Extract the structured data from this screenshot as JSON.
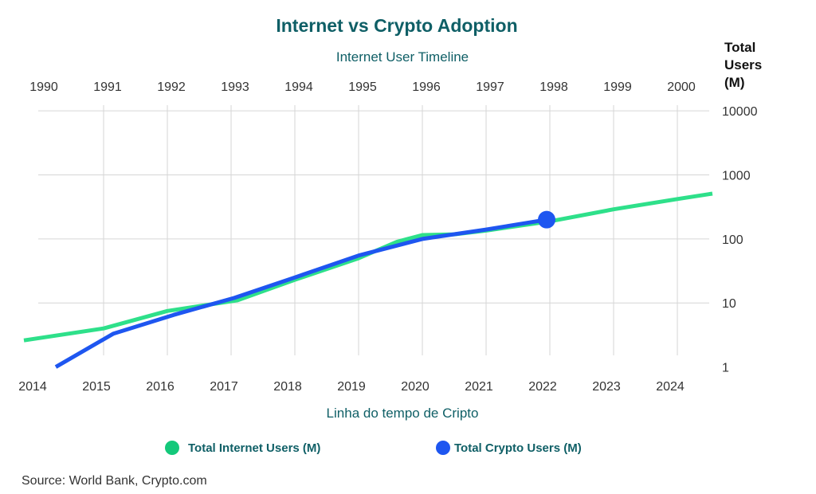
{
  "chart_data": {
    "type": "line",
    "title": "Internet vs Crypto Adoption",
    "top_axis_label": "Internet User Timeline",
    "top_ticks": [
      "1990",
      "1991",
      "1992",
      "1993",
      "1994",
      "1995",
      "1996",
      "1997",
      "1998",
      "1999",
      "2000"
    ],
    "xlabel": "Linha do tempo de Cripto",
    "x_ticks": [
      "2014",
      "2015",
      "2016",
      "2017",
      "2018",
      "2019",
      "2020",
      "2021",
      "2022",
      "2023",
      "2024"
    ],
    "ylabel": [
      "Total",
      "Users",
      "(M)"
    ],
    "y_scale": "log",
    "y_ticks": [
      "1",
      "10",
      "100",
      "1000",
      "10000"
    ],
    "ylim": [
      0.7,
      20000
    ],
    "grid": true,
    "legend_position": "bottom",
    "series": [
      {
        "name": "Total Internet Users (M)",
        "color": "#2ee08a",
        "marker_color": "#14c87a",
        "axis": "top",
        "points": [
          [
            1989.75,
            2.6
          ],
          [
            1991.0,
            4.0
          ],
          [
            1992.0,
            7.5
          ],
          [
            1993.1,
            11
          ],
          [
            1994.0,
            23
          ],
          [
            1995.0,
            50
          ],
          [
            1995.6,
            90
          ],
          [
            1996.0,
            115
          ],
          [
            1996.5,
            118
          ],
          [
            1997.0,
            135
          ],
          [
            1998.0,
            188
          ],
          [
            1999.0,
            290
          ],
          [
            2000.0,
            420
          ],
          [
            2000.55,
            510
          ]
        ]
      },
      {
        "name": "Total Crypto Users (M)",
        "color": "#1e56f0",
        "marker_color": "#1e56f0",
        "axis": "bottom",
        "points": [
          [
            2014.25,
            1.0
          ],
          [
            2015.15,
            3.3
          ],
          [
            2016.1,
            6.5
          ],
          [
            2017.05,
            12
          ],
          [
            2018.0,
            25
          ],
          [
            2019.0,
            55
          ],
          [
            2020.0,
            100
          ],
          [
            2021.0,
            140
          ],
          [
            2021.95,
            200
          ]
        ],
        "end_marker": true
      }
    ]
  },
  "source": "Source: World Bank, Crypto.com"
}
